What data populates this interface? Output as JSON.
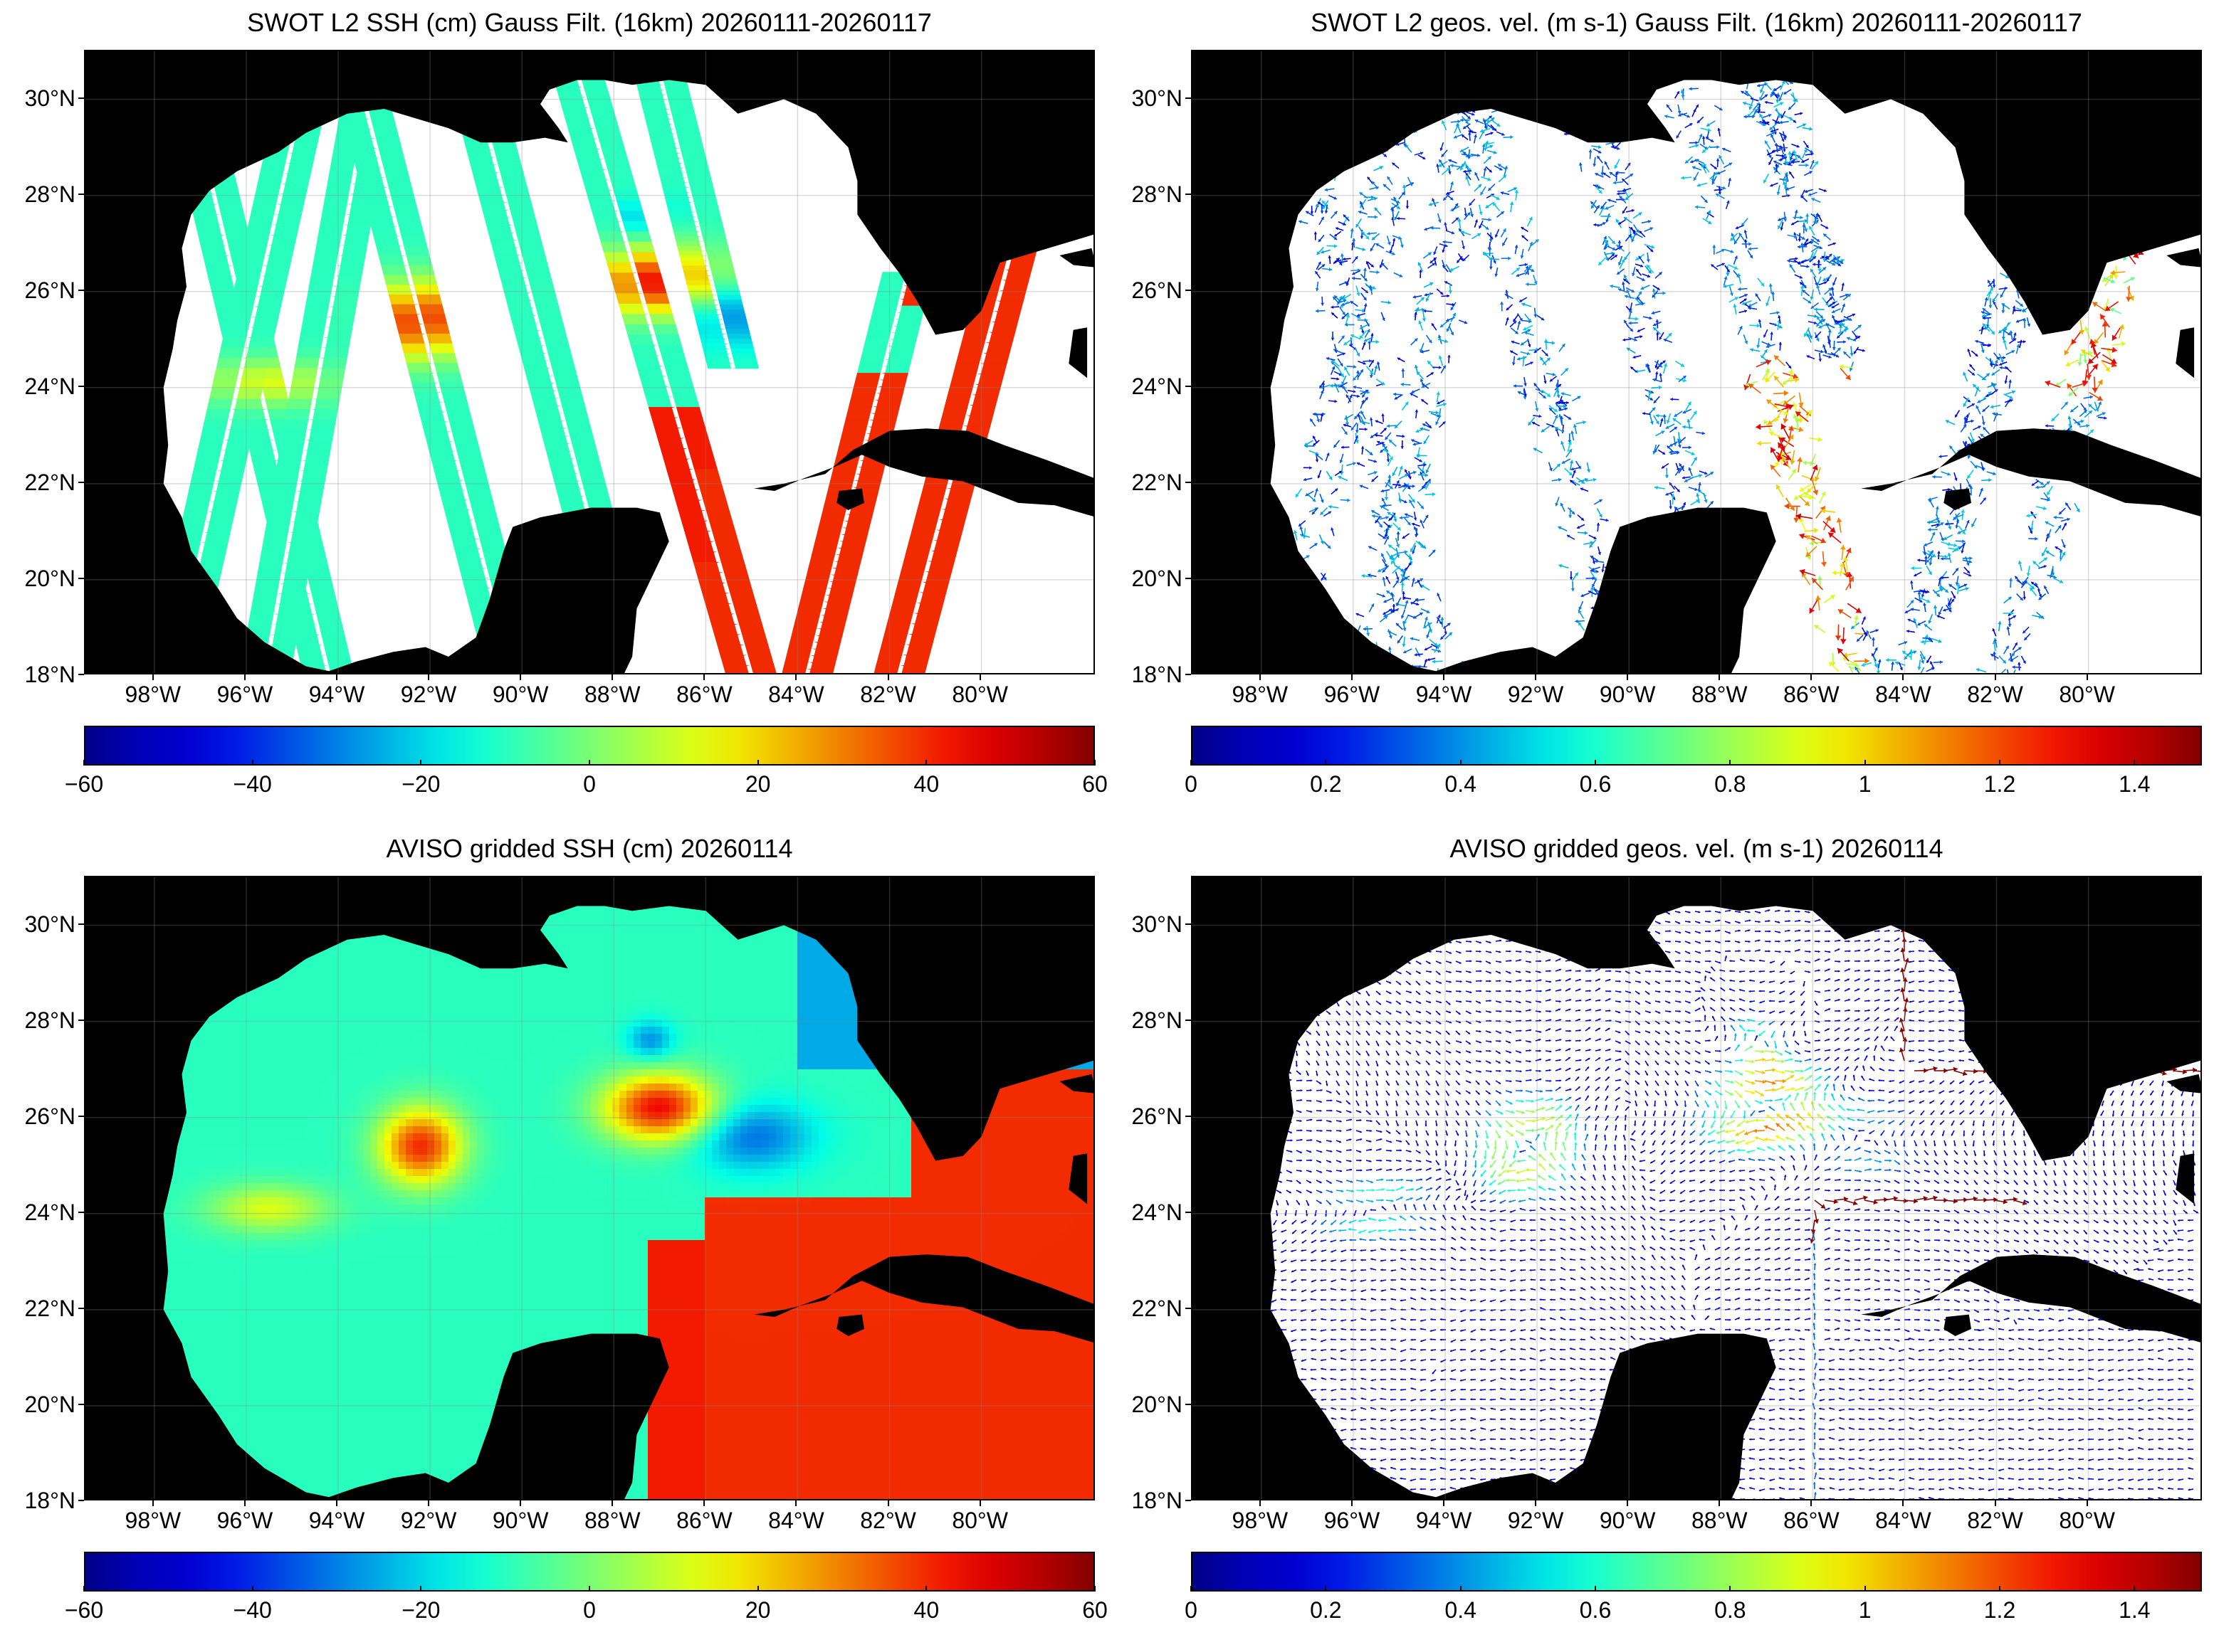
{
  "panels": [
    {
      "id": "swot-ssh",
      "title": "SWOT L2 SSH (cm) Gauss Filt. (16km) 20260111-20260117",
      "kind": "ssh-swaths",
      "colorbar": {
        "min": -60,
        "max": 60,
        "ticks": [
          "−60",
          "−40",
          "−20",
          "0",
          "20",
          "40",
          "60"
        ],
        "colormap": "jet"
      }
    },
    {
      "id": "swot-vel",
      "title": "SWOT L2 geos. vel. (m s-1) Gauss Filt. (16km) 20260111-20260117",
      "kind": "vel-swaths",
      "colorbar": {
        "min": 0,
        "max": 1.5,
        "ticks": [
          "0",
          "0.2",
          "0.4",
          "0.6",
          "0.8",
          "1",
          "1.2",
          "1.4"
        ],
        "colormap": "jet"
      }
    },
    {
      "id": "aviso-ssh",
      "title": "AVISO gridded SSH (cm) 20260114",
      "kind": "ssh-grid",
      "colorbar": {
        "min": -60,
        "max": 60,
        "ticks": [
          "−60",
          "−40",
          "−20",
          "0",
          "20",
          "40",
          "60"
        ],
        "colormap": "jet"
      }
    },
    {
      "id": "aviso-vel",
      "title": "AVISO gridded geos. vel. (m s-1)  20260114",
      "kind": "vel-grid",
      "colorbar": {
        "min": 0,
        "max": 1.5,
        "ticks": [
          "0",
          "0.2",
          "0.4",
          "0.6",
          "0.8",
          "1",
          "1.2",
          "1.4"
        ],
        "colormap": "jet"
      }
    }
  ],
  "map": {
    "lon_range": [
      -99.5,
      -77.5
    ],
    "lat_range": [
      18,
      31
    ],
    "lat_ticks": [
      "30°N",
      "28°N",
      "26°N",
      "24°N",
      "22°N",
      "20°N",
      "18°N"
    ],
    "lon_ticks": [
      "98°W",
      "96°W",
      "94°W",
      "92°W",
      "90°W",
      "88°W",
      "86°W",
      "84°W",
      "82°W",
      "80°W"
    ],
    "land_color": "#000000",
    "gridlines": true
  }
}
